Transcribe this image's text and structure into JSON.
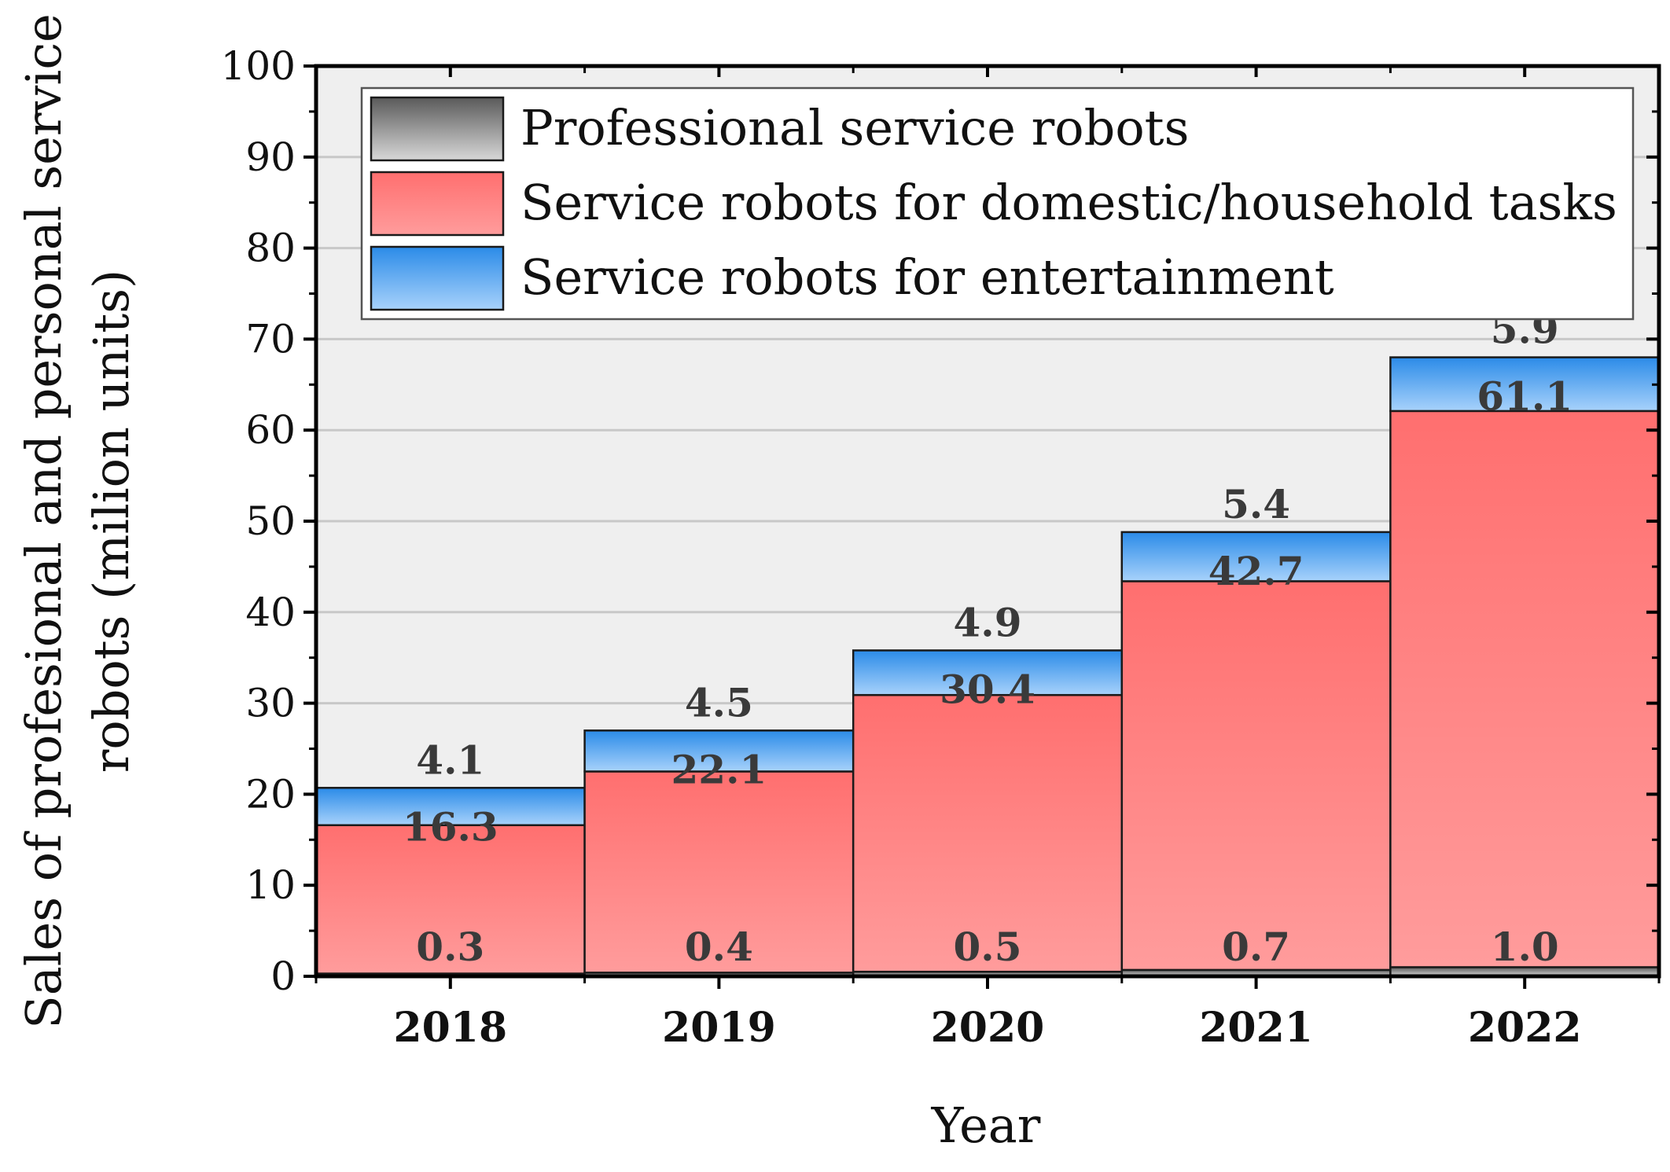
{
  "chart_data": {
    "type": "bar",
    "stacked": true,
    "title": "",
    "xlabel": "Year",
    "ylabel_line1": "Sales of profesional and personal service",
    "ylabel_line2": "robots (milion units)",
    "ylim": [
      0,
      100
    ],
    "yticks": [
      0,
      10,
      20,
      30,
      40,
      50,
      60,
      70,
      80,
      90,
      100
    ],
    "grid": true,
    "legend_position": "top",
    "categories": [
      "2018",
      "2019",
      "2020",
      "2021",
      "2022"
    ],
    "series": [
      {
        "name": "Professional service robots",
        "values": [
          0.3,
          0.4,
          0.5,
          0.7,
          1.0
        ],
        "labels": [
          "0.3",
          "0.4",
          "0.5",
          "0.7",
          "1.0"
        ],
        "color_top": "#5a5a5a",
        "color_bottom": "#d8d8d8"
      },
      {
        "name": "Service robots for domestic/household tasks",
        "values": [
          16.3,
          22.1,
          30.4,
          42.7,
          61.1
        ],
        "labels": [
          "16.3",
          "22.1",
          "30.4",
          "42.7",
          "61.1"
        ],
        "color_top": "#ff6f6f",
        "color_bottom": "#ff9c9c"
      },
      {
        "name": "Service robots for entertainment",
        "values": [
          4.1,
          4.5,
          4.9,
          5.4,
          5.9
        ],
        "labels": [
          "4.1",
          "4.5",
          "4.9",
          "5.4",
          "5.9"
        ],
        "color_top": "#2b8be8",
        "color_bottom": "#a8d2fb"
      }
    ],
    "plot_background": "#efefef",
    "gridline_color": "#c8c8c8"
  }
}
